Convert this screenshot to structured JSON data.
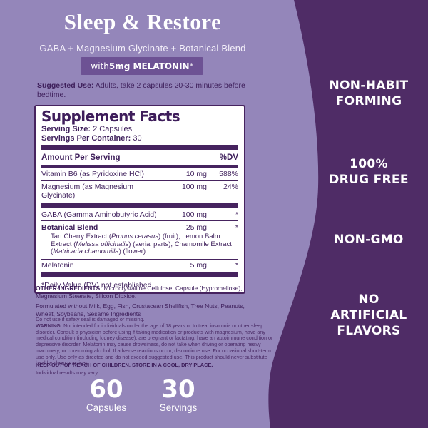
{
  "colors": {
    "background": "#9486BA",
    "panel_dark": "#4F2C66",
    "badge": "#6D5294",
    "panel_rule": "#46235F",
    "text_dark": "#3E1F5B",
    "white": "#FFFFFF"
  },
  "header": {
    "title": "Sleep & Restore",
    "subtitle": "GABA + Magnesium Glycinate + Botanical Blend",
    "badge": {
      "prefix": "with ",
      "bold": "5mg MELATONIN",
      "sup": "*"
    }
  },
  "suggested_use": {
    "label": "Suggested Use:",
    "text": " Adults, take 2 capsules 20-30 minutes before bedtime."
  },
  "supplement_facts": {
    "title": "Supplement Facts",
    "serving_size_label": "Serving Size:",
    "serving_size": " 2 Capsules",
    "servings_label": "Servings Per Container:",
    "servings": " 30",
    "col_header": {
      "name": "Amount Per Serving",
      "dv": "%DV"
    },
    "rows": [
      {
        "name": [
          {
            "t": "Vitamin B6 (as Pyridoxine HCl)"
          }
        ],
        "amount": "10 mg",
        "dv": "588%",
        "divider_after": "thin"
      },
      {
        "name": [
          {
            "t": "Magnesium (as Magnesium Glycinate)"
          }
        ],
        "amount": "100 mg",
        "dv": "24%",
        "divider_after": "thick"
      },
      {
        "name": [
          {
            "t": "GABA (Gamma Aminobutyric Acid)"
          }
        ],
        "amount": "100 mg",
        "dv": "*",
        "divider_after": "thin"
      },
      {
        "name": [
          {
            "t": "Botanical Blend",
            "b": true
          }
        ],
        "amount": "25 mg",
        "dv": "*",
        "desc": [
          {
            "t": "Tart Cherry Extract ("
          },
          {
            "t": "Prunus cerasus",
            "i": true
          },
          {
            "t": ") (fruit), Lemon Balm Extract ("
          },
          {
            "t": "Melissa officinalis",
            "i": true
          },
          {
            "t": ") (aerial parts), Chamomile Extract ("
          },
          {
            "t": "Matricaria chamomilla",
            "i": true
          },
          {
            "t": ") (flower)."
          }
        ],
        "divider_after": "thin"
      },
      {
        "name": [
          {
            "t": "Melatonin"
          }
        ],
        "amount": "5 mg",
        "dv": "*",
        "divider_after": "thick"
      }
    ],
    "footnote": "*Daily Value (DV) not established."
  },
  "other_ingredients": {
    "label": "OTHER INGREDIENTS:",
    "text": " Microcrystalline Cellulose, Capsule (Hypromellose), Magnesium Stearate, Silicon Dioxide."
  },
  "formulated": "Formulated without Milk, Egg, Fish, Crustacean Shellfish, Tree Nuts, Peanuts, Wheat, Soybeans, Sesame Ingredients",
  "seal_note": "Do not use if safety seal is damaged or missing.",
  "warning": {
    "label": "WARNING:",
    "text": " Not intended for individuals under the age of 18 years or to treat insomnia or other sleep disorder. Consult a physician before using if taking medication or products with magnesium, have any medical condition (including kidney disease), are pregnant or lactating, have an autoimmune condition or depressive disorder. Melatonin may cause drowsiness, do not take when driving or operating heavy machinery, or consuming alcohol. If adverse reactions occur, discontinue use. For occasional short-term use only. Use only as directed and do not exceed suggested use. This product should never substitute healthy sleep practices."
  },
  "keep_out": "KEEP OUT OF REACH OF CHILDREN. STORE IN A COOL, DRY PLACE.",
  "results_note": "Individual results may vary.",
  "claims": [
    {
      "lines": [
        "NON-HABIT",
        "FORMING"
      ]
    },
    {
      "lines": [
        "100%",
        "DRUG FREE"
      ]
    },
    {
      "lines": [
        "NON-GMO"
      ]
    },
    {
      "lines": [
        "NO",
        "ARTIFICIAL",
        "FLAVORS"
      ]
    }
  ],
  "stats": [
    {
      "value": "60",
      "label": "Capsules"
    },
    {
      "value": "30",
      "label": "Servings"
    }
  ]
}
